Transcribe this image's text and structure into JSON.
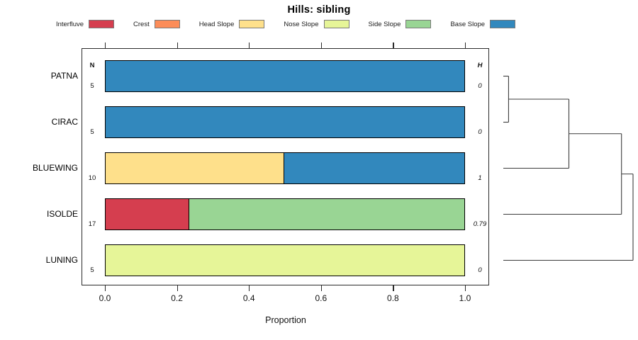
{
  "title": "Hills: sibling",
  "xlabel": "Proportion",
  "columns": {
    "n_header": "N",
    "h_header": "H"
  },
  "legend": [
    {
      "label": "Interfluve",
      "color": "#D53E4F"
    },
    {
      "label": "Crest",
      "color": "#FC8D59"
    },
    {
      "label": "Head Slope",
      "color": "#FEE08B"
    },
    {
      "label": "Nose Slope",
      "color": "#E6F598"
    },
    {
      "label": "Side Slope",
      "color": "#99D594"
    },
    {
      "label": "Base Slope",
      "color": "#3288BD"
    }
  ],
  "chart_data": {
    "type": "bar",
    "orientation": "horizontal-stacked",
    "title": "Hills: sibling",
    "xlabel": "Proportion",
    "xlim": [
      0,
      1
    ],
    "x_ticks": [
      0,
      0.2,
      0.4,
      0.6,
      0.8,
      1.0
    ],
    "x_tick_labels": [
      "0.0",
      "0.2",
      "0.4",
      "0.6",
      "0.8",
      "1.0"
    ],
    "grid": false,
    "legend_position": "top",
    "categories": [
      "PATNA",
      "CIRAC",
      "BLUEWING",
      "ISOLDE",
      "LUNING"
    ],
    "N": [
      "5",
      "5",
      "10",
      "17",
      "5"
    ],
    "H": [
      "0",
      "0",
      "1",
      "0.79",
      "0"
    ],
    "series": [
      {
        "name": "Interfluve",
        "color": "#D53E4F",
        "values": [
          0,
          0,
          0,
          0.235,
          0
        ]
      },
      {
        "name": "Crest",
        "color": "#FC8D59",
        "values": [
          0,
          0,
          0,
          0,
          0
        ]
      },
      {
        "name": "Head Slope",
        "color": "#FEE08B",
        "values": [
          0,
          0,
          0.5,
          0,
          0
        ]
      },
      {
        "name": "Nose Slope",
        "color": "#E6F598",
        "values": [
          0,
          0,
          0,
          0,
          1
        ]
      },
      {
        "name": "Side Slope",
        "color": "#99D594",
        "values": [
          0,
          0,
          0,
          0.765,
          0
        ]
      },
      {
        "name": "Base Slope",
        "color": "#3288BD",
        "values": [
          1,
          1,
          0.5,
          0,
          0
        ]
      }
    ],
    "dendrogram": {
      "position": "right",
      "merges": [
        {
          "a": "PATNA",
          "b": "CIRAC",
          "height": 0.03
        },
        {
          "a": 0,
          "b": "BLUEWING",
          "height": 0.5
        },
        {
          "a": 1,
          "b": "ISOLDE",
          "height": 0.91
        },
        {
          "a": 2,
          "b": "LUNING",
          "height": 1.0
        }
      ]
    }
  }
}
